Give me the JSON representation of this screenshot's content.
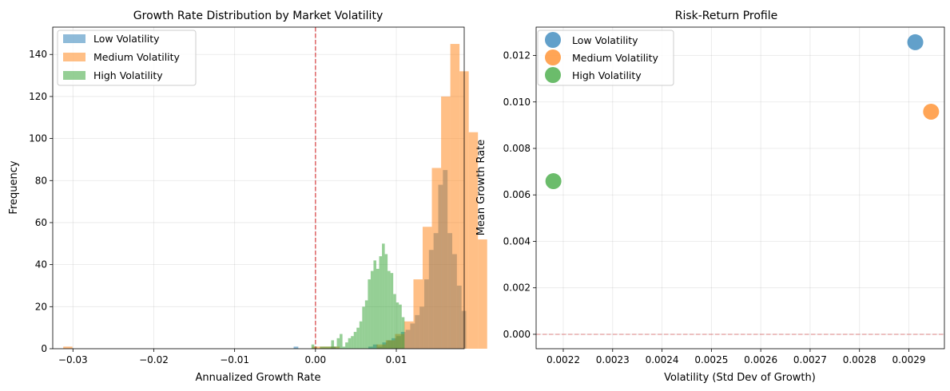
{
  "chart_data": [
    {
      "type": "histogram",
      "title": "Growth Rate Distribution by Market Volatility",
      "xlabel": "Annualized Growth Rate",
      "ylabel": "Frequency",
      "xlim": [
        -0.0325,
        0.0184
      ],
      "ylim": [
        0,
        153
      ],
      "xticks": [
        -0.03,
        -0.02,
        -0.01,
        0.0,
        0.01
      ],
      "xtick_labels": [
        "−0.03",
        "−0.02",
        "−0.01",
        "0.00",
        "0.01"
      ],
      "yticks": [
        0,
        20,
        40,
        60,
        80,
        100,
        120,
        140
      ],
      "ytick_labels": [
        "0",
        "20",
        "40",
        "60",
        "80",
        "100",
        "120",
        "140"
      ],
      "reference_line": {
        "x": 0.0,
        "color": "#d62728",
        "style": "dashed"
      },
      "grid": true,
      "legend_position": "upper-left",
      "series": [
        {
          "name": "Low Volatility",
          "color": "#1f77b4",
          "bin_start": -0.0027,
          "bin_width": 0.000577,
          "counts": [
            1,
            0,
            0,
            0,
            0,
            0,
            0,
            0,
            1,
            0,
            0,
            0,
            0,
            0,
            0,
            0,
            1,
            2,
            1,
            3,
            4,
            5,
            6,
            8,
            9,
            12,
            16,
            20,
            33,
            47,
            55,
            78,
            85,
            55,
            45,
            30,
            18
          ]
        },
        {
          "name": "Medium Volatility",
          "color": "#ff7f0e",
          "bin_start": -0.0312,
          "bin_width": 0.00114,
          "counts": [
            1,
            0,
            0,
            0,
            0,
            0,
            0,
            0,
            0,
            0,
            0,
            0,
            0,
            0,
            0,
            0,
            0,
            0,
            0,
            0,
            0,
            0,
            0,
            0,
            0,
            0,
            0,
            1,
            1,
            1,
            0,
            0,
            0,
            0,
            2,
            4,
            7,
            13,
            33,
            58,
            86,
            120,
            145,
            132,
            103,
            52
          ]
        },
        {
          "name": "High Volatility",
          "color": "#2ca02c",
          "bin_start": -0.0005,
          "bin_width": 0.000349,
          "counts": [
            2,
            1,
            0,
            1,
            1,
            1,
            1,
            4,
            1,
            5,
            7,
            1,
            3,
            5,
            6,
            8,
            10,
            13,
            20,
            23,
            33,
            37,
            42,
            38,
            44,
            50,
            45,
            37,
            36,
            26,
            22,
            21,
            15
          ]
        }
      ]
    },
    {
      "type": "scatter",
      "title": "Risk-Return Profile",
      "xlabel": "Volatility (Std Dev of Growth)",
      "ylabel": "Mean Growth Rate",
      "xlim": [
        0.002145,
        0.002972
      ],
      "ylim": [
        -0.00062,
        0.01322
      ],
      "xticks": [
        0.0022,
        0.0023,
        0.0024,
        0.0025,
        0.0026,
        0.0027,
        0.0028,
        0.0029
      ],
      "xtick_labels": [
        "0.0022",
        "0.0023",
        "0.0024",
        "0.0025",
        "0.0026",
        "0.0027",
        "0.0028",
        "0.0029"
      ],
      "yticks": [
        0.0,
        0.002,
        0.004,
        0.006,
        0.008,
        0.01,
        0.012
      ],
      "ytick_labels": [
        "0.000",
        "0.002",
        "0.004",
        "0.006",
        "0.008",
        "0.010",
        "0.012"
      ],
      "reference_line": {
        "y": 0.0,
        "color": "#d62728",
        "style": "dashed"
      },
      "grid": true,
      "legend_position": "upper-left",
      "series": [
        {
          "name": "Low Volatility",
          "color": "#1f77b4",
          "x": 0.002913,
          "y": 0.01257
        },
        {
          "name": "Medium Volatility",
          "color": "#ff7f0e",
          "x": 0.002945,
          "y": 0.00958
        },
        {
          "name": "High Volatility",
          "color": "#2ca02c",
          "x": 0.00218,
          "y": 0.00659
        }
      ]
    }
  ]
}
